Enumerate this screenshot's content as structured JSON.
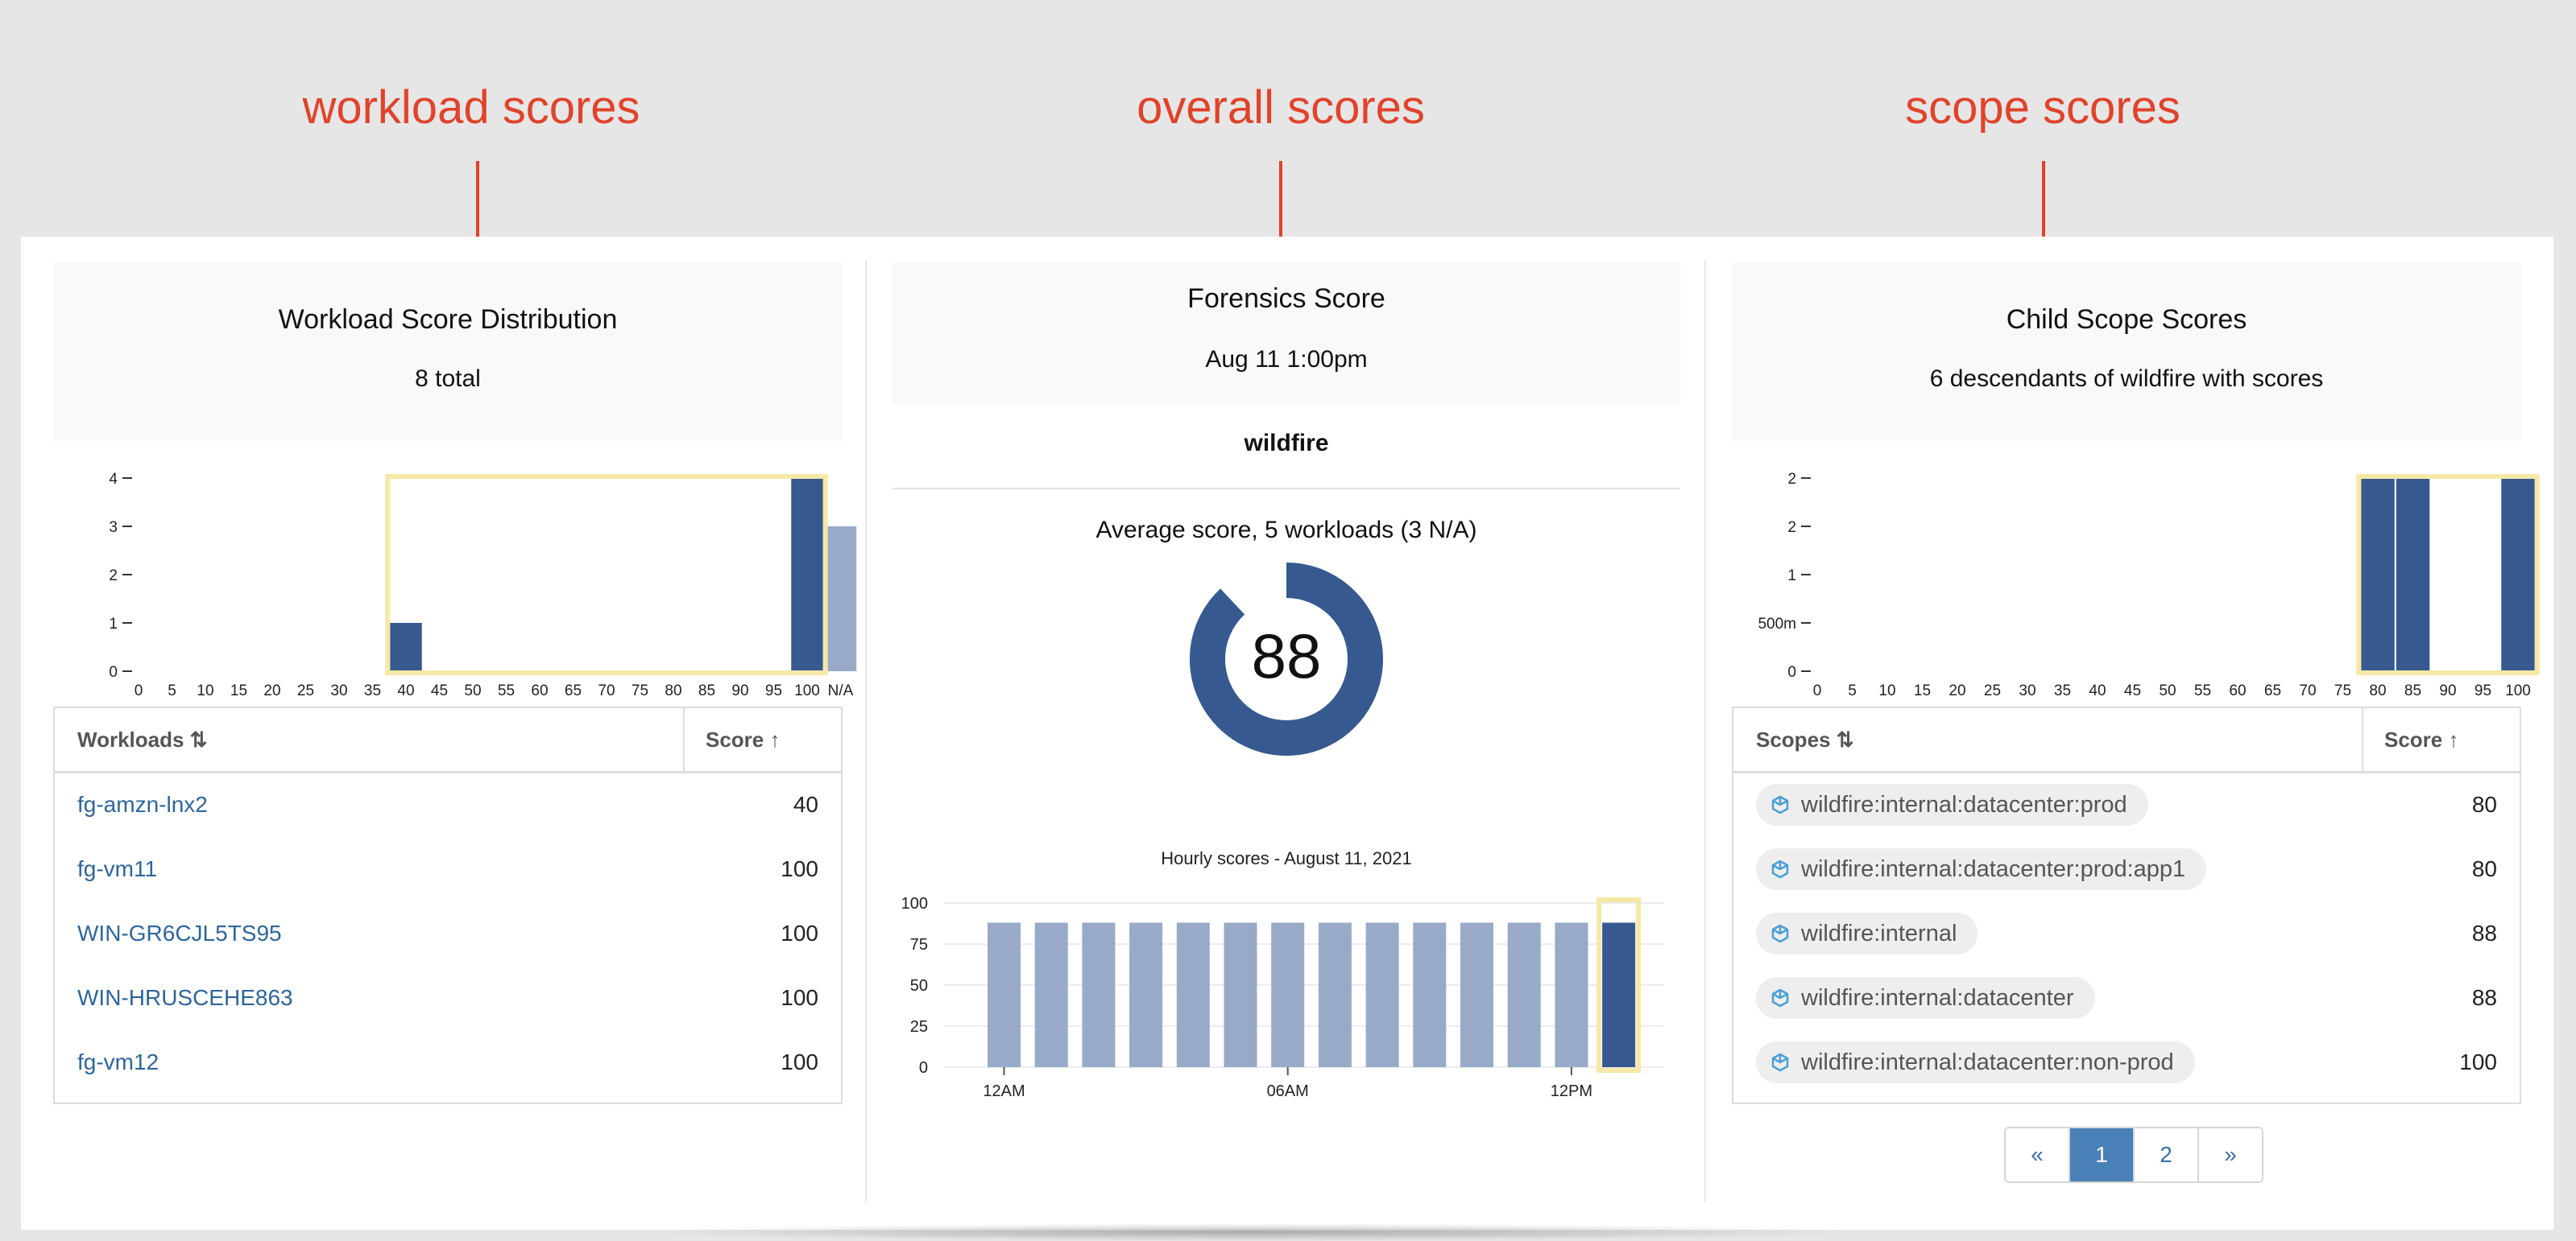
{
  "annotations": {
    "workload": "workload scores",
    "overall": "overall scores",
    "scope": "scope scores",
    "color": "#e0432b"
  },
  "workload_panel": {
    "title": "Workload Score Distribution",
    "subtitle": "8 total",
    "chart_data": {
      "type": "bar",
      "categories": [
        "0",
        "5",
        "10",
        "15",
        "20",
        "25",
        "30",
        "35",
        "40",
        "45",
        "50",
        "55",
        "60",
        "65",
        "70",
        "75",
        "80",
        "85",
        "90",
        "95",
        "100",
        "N/A"
      ],
      "values": [
        0,
        0,
        0,
        0,
        0,
        0,
        0,
        0,
        1,
        0,
        0,
        0,
        0,
        0,
        0,
        0,
        0,
        0,
        0,
        0,
        4,
        3
      ],
      "y_ticks": [
        "0",
        "1",
        "2",
        "3",
        "4"
      ],
      "ylim": [
        0,
        4
      ],
      "highlighted_range": [
        "40",
        "100"
      ]
    },
    "table": {
      "columns": [
        "Workloads",
        "Score"
      ],
      "sort_icon": "sort-both-icon",
      "score_sort_icon": "arrow-up-icon",
      "rows": [
        {
          "name": "fg-amzn-lnx2",
          "score": "40"
        },
        {
          "name": "fg-vm11",
          "score": "100"
        },
        {
          "name": "WIN-GR6CJL5TS95",
          "score": "100"
        },
        {
          "name": "WIN-HRUSCEHE863",
          "score": "100"
        },
        {
          "name": "fg-vm12",
          "score": "100"
        }
      ]
    }
  },
  "forensics_panel": {
    "title": "Forensics Score",
    "date": "Aug 11 1:00pm",
    "scope_name": "wildfire",
    "average_label": "Average score, 5 workloads (3 N/A)",
    "score": "88",
    "score_value": 88,
    "hourly_chart": {
      "chart_data": {
        "type": "bar",
        "title": "Hourly scores - August 11, 2021",
        "values": [
          88,
          88,
          88,
          88,
          88,
          88,
          88,
          88,
          88,
          88,
          88,
          88,
          88,
          88
        ],
        "y_ticks": [
          "0",
          "25",
          "50",
          "75",
          "100"
        ],
        "ylim": [
          0,
          100
        ],
        "x_ticks": [
          "12AM",
          "06AM",
          "12PM"
        ],
        "highlighted_index": 13
      }
    }
  },
  "scope_panel": {
    "title": "Child Scope Scores",
    "subtitle": "6 descendants of wildfire with scores",
    "chart_data": {
      "type": "bar",
      "categories": [
        "0",
        "5",
        "10",
        "15",
        "20",
        "25",
        "30",
        "35",
        "40",
        "45",
        "50",
        "55",
        "60",
        "65",
        "70",
        "75",
        "80",
        "85",
        "90",
        "95",
        "100"
      ],
      "values": [
        0,
        0,
        0,
        0,
        0,
        0,
        0,
        0,
        0,
        0,
        0,
        0,
        0,
        0,
        0,
        0,
        2,
        2,
        0,
        0,
        2
      ],
      "y_ticks": [
        "0",
        "500m",
        "1",
        "2",
        "2"
      ],
      "ylim": [
        0,
        2
      ],
      "highlighted_range": [
        "80",
        "100"
      ]
    },
    "table": {
      "columns": [
        "Scopes",
        "Score"
      ],
      "sort_icon": "sort-both-icon",
      "score_sort_icon": "arrow-up-icon",
      "rows": [
        {
          "name": "wildfire:internal:datacenter:prod",
          "score": "80"
        },
        {
          "name": "wildfire:internal:datacenter:prod:app1",
          "score": "80"
        },
        {
          "name": "wildfire:internal",
          "score": "88"
        },
        {
          "name": "wildfire:internal:datacenter",
          "score": "88"
        },
        {
          "name": "wildfire:internal:datacenter:non-prod",
          "score": "100"
        }
      ]
    },
    "pagination": [
      "«",
      "1",
      "2",
      "»"
    ],
    "current_page": "1"
  },
  "colors": {
    "bar": "#36598f",
    "bar_light": "#98aac8",
    "highlight": "#f6e8a6",
    "link": "#2f6599",
    "scope_icon": "#4a9fd4"
  }
}
